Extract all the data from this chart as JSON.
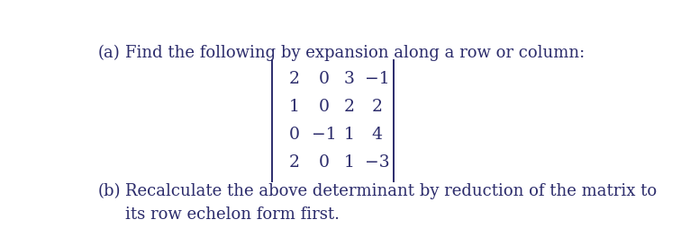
{
  "part_a_label": "(a)",
  "part_a_text": "Find the following by expansion along a row or column:",
  "part_b_label": "(b)",
  "part_b_line1": "Recalculate the above determinant by reduction of the matrix to",
  "part_b_line2": "its row echelon form first.",
  "matrix": [
    [
      "2",
      "0",
      "3",
      "−1"
    ],
    [
      "1",
      "0",
      "2",
      "2"
    ],
    [
      "0",
      "−1",
      "1",
      "4"
    ],
    [
      "2",
      "0",
      "1",
      "−3"
    ]
  ],
  "text_color": "#2b2b6b",
  "bg_color": "#ffffff",
  "font_size_text": 13.0,
  "font_size_matrix": 13.5
}
